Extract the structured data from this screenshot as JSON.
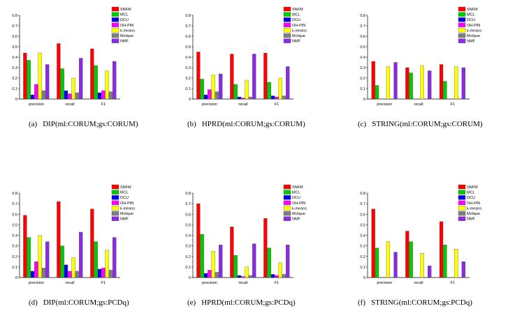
{
  "chart_data": [
    {
      "type": "bar",
      "caption_label": "(a)",
      "caption_text": "DIP(ml:CORUM;gs:CORUM)",
      "categories": [
        "precision",
        "recall",
        "F1"
      ],
      "ylim": [
        0,
        0.8
      ],
      "yticks": [
        "0",
        "0.1",
        "0.2",
        "0.3",
        "0.4",
        "0.5",
        "0.6",
        "0.7",
        "0.8"
      ],
      "legend_position": "top-right",
      "series": [
        {
          "name": "SNFM",
          "color": "#ff0000",
          "values": [
            0.44,
            0.53,
            0.48
          ]
        },
        {
          "name": "MCL",
          "color": "#00cc00",
          "values": [
            0.37,
            0.29,
            0.32
          ]
        },
        {
          "name": "DCU",
          "color": "#0000ee",
          "values": [
            0.04,
            0.08,
            0.06
          ]
        },
        {
          "name": "OH-PIN",
          "color": "#ff00ff",
          "values": [
            0.14,
            0.05,
            0.08
          ]
        },
        {
          "name": "k-means",
          "color": "#ffff00",
          "values": [
            0.44,
            0.2,
            0.27
          ]
        },
        {
          "name": "Mclique",
          "color": "#808080",
          "values": [
            0.08,
            0.06,
            0.07
          ]
        },
        {
          "name": "NMF",
          "color": "#8a2be2",
          "values": [
            0.33,
            0.39,
            0.36
          ]
        }
      ]
    },
    {
      "type": "bar",
      "caption_label": "(b)",
      "caption_text": "HPRD(ml:CORUM;gs:CORUM)",
      "categories": [
        "precision",
        "recall",
        "F1"
      ],
      "ylim": [
        0,
        0.8
      ],
      "yticks": [
        "0",
        "0.1",
        "0.2",
        "0.3",
        "0.4",
        "0.5",
        "0.6",
        "0.7",
        "0.8"
      ],
      "legend_position": "top-right",
      "series": [
        {
          "name": "SNFM",
          "color": "#ff0000",
          "values": [
            0.45,
            0.43,
            0.44
          ]
        },
        {
          "name": "MCL",
          "color": "#00cc00",
          "values": [
            0.19,
            0.14,
            0.16
          ]
        },
        {
          "name": "DCU",
          "color": "#0000ee",
          "values": [
            0.04,
            0.02,
            0.03
          ]
        },
        {
          "name": "OH-PIN",
          "color": "#ff00ff",
          "values": [
            0.09,
            0.01,
            0.02
          ]
        },
        {
          "name": "k-means",
          "color": "#ffff00",
          "values": [
            0.23,
            0.18,
            0.2
          ]
        },
        {
          "name": "Mclique",
          "color": "#808080",
          "values": [
            0.07,
            0.02,
            0.03
          ]
        },
        {
          "name": "NMF",
          "color": "#8a2be2",
          "values": [
            0.24,
            0.43,
            0.31
          ]
        }
      ]
    },
    {
      "type": "bar",
      "caption_label": "(c)",
      "caption_text": "STRING(ml:CORUM;gs:CORUM)",
      "categories": [
        "precision",
        "recall",
        "F1"
      ],
      "ylim": [
        0,
        0.8
      ],
      "yticks": [
        "0",
        "0.1",
        "0.2",
        "0.3",
        "0.4",
        "0.5",
        "0.6",
        "0.7",
        "0.8"
      ],
      "legend_position": "top-right",
      "series": [
        {
          "name": "SNFM",
          "color": "#ff0000",
          "values": [
            0.36,
            0.3,
            0.33
          ]
        },
        {
          "name": "MCL",
          "color": "#00cc00",
          "values": [
            0.13,
            0.25,
            0.17
          ]
        },
        {
          "name": "DCU",
          "color": "#0000ee",
          "values": [
            0,
            0,
            0
          ]
        },
        {
          "name": "OH-PIN",
          "color": "#ff00ff",
          "values": [
            0,
            0,
            0
          ]
        },
        {
          "name": "k-means",
          "color": "#ffff00",
          "values": [
            0.31,
            0.32,
            0.31
          ]
        },
        {
          "name": "Mclique",
          "color": "#808080",
          "values": [
            0,
            0,
            0
          ]
        },
        {
          "name": "NMF",
          "color": "#8a2be2",
          "values": [
            0.35,
            0.27,
            0.3
          ]
        }
      ]
    },
    {
      "type": "bar",
      "caption_label": "(d)",
      "caption_text": "DIP(ml:CORUM;gs:PCDq)",
      "categories": [
        "precision",
        "recall",
        "F1"
      ],
      "ylim": [
        0,
        0.8
      ],
      "yticks": [
        "0",
        "0.1",
        "0.2",
        "0.3",
        "0.4",
        "0.5",
        "0.6",
        "0.7",
        "0.8"
      ],
      "legend_position": "top-right",
      "series": [
        {
          "name": "SNFM",
          "color": "#ff0000",
          "values": [
            0.59,
            0.72,
            0.65
          ]
        },
        {
          "name": "MCL",
          "color": "#00cc00",
          "values": [
            0.38,
            0.3,
            0.34
          ]
        },
        {
          "name": "DCU",
          "color": "#0000ee",
          "values": [
            0.06,
            0.12,
            0.08
          ]
        },
        {
          "name": "OH-PIN",
          "color": "#ff00ff",
          "values": [
            0.15,
            0.06,
            0.09
          ]
        },
        {
          "name": "k-means",
          "color": "#ffff00",
          "values": [
            0.4,
            0.19,
            0.26
          ]
        },
        {
          "name": "Mclique",
          "color": "#808080",
          "values": [
            0.09,
            0.06,
            0.07
          ]
        },
        {
          "name": "NMF",
          "color": "#8a2be2",
          "values": [
            0.34,
            0.43,
            0.38
          ]
        }
      ]
    },
    {
      "type": "bar",
      "caption_label": "(e)",
      "caption_text": "HPRD(ml:CORUM;gs:PCDq)",
      "categories": [
        "precision",
        "recall",
        "F1"
      ],
      "ylim": [
        0,
        0.8
      ],
      "yticks": [
        "0",
        "0.1",
        "0.2",
        "0.3",
        "0.4",
        "0.5",
        "0.6",
        "0.7",
        "0.8"
      ],
      "legend_position": "top-right",
      "series": [
        {
          "name": "SNFM",
          "color": "#ff0000",
          "values": [
            0.7,
            0.48,
            0.56
          ]
        },
        {
          "name": "MCL",
          "color": "#00cc00",
          "values": [
            0.41,
            0.21,
            0.28
          ]
        },
        {
          "name": "DCU",
          "color": "#0000ee",
          "values": [
            0.04,
            0.02,
            0.03
          ]
        },
        {
          "name": "OH-PIN",
          "color": "#ff00ff",
          "values": [
            0.07,
            0.01,
            0.02
          ]
        },
        {
          "name": "k-means",
          "color": "#ffff00",
          "values": [
            0.25,
            0.1,
            0.14
          ]
        },
        {
          "name": "Mclique",
          "color": "#808080",
          "values": [
            0.05,
            0.02,
            0.03
          ]
        },
        {
          "name": "NMF",
          "color": "#8a2be2",
          "values": [
            0.31,
            0.32,
            0.31
          ]
        }
      ]
    },
    {
      "type": "bar",
      "caption_label": "(f)",
      "caption_text": "STRING(ml:CORUM;gs:PCDq)",
      "categories": [
        "precision",
        "recall",
        "F1"
      ],
      "ylim": [
        0,
        0.8
      ],
      "yticks": [
        "0",
        "0.1",
        "0.2",
        "0.3",
        "0.4",
        "0.5",
        "0.6",
        "0.7",
        "0.8"
      ],
      "legend_position": "top-right",
      "series": [
        {
          "name": "SNFM",
          "color": "#ff0000",
          "values": [
            0.65,
            0.44,
            0.53
          ]
        },
        {
          "name": "MCL",
          "color": "#00cc00",
          "values": [
            0.28,
            0.34,
            0.31
          ]
        },
        {
          "name": "DCU",
          "color": "#0000ee",
          "values": [
            0,
            0,
            0
          ]
        },
        {
          "name": "OH-PIN",
          "color": "#ff00ff",
          "values": [
            0,
            0,
            0
          ]
        },
        {
          "name": "k-means",
          "color": "#ffff00",
          "values": [
            0.34,
            0.23,
            0.27
          ]
        },
        {
          "name": "Mclique",
          "color": "#808080",
          "values": [
            0,
            0,
            0
          ]
        },
        {
          "name": "NMF",
          "color": "#8a2be2",
          "values": [
            0.24,
            0.11,
            0.15
          ]
        }
      ]
    }
  ]
}
